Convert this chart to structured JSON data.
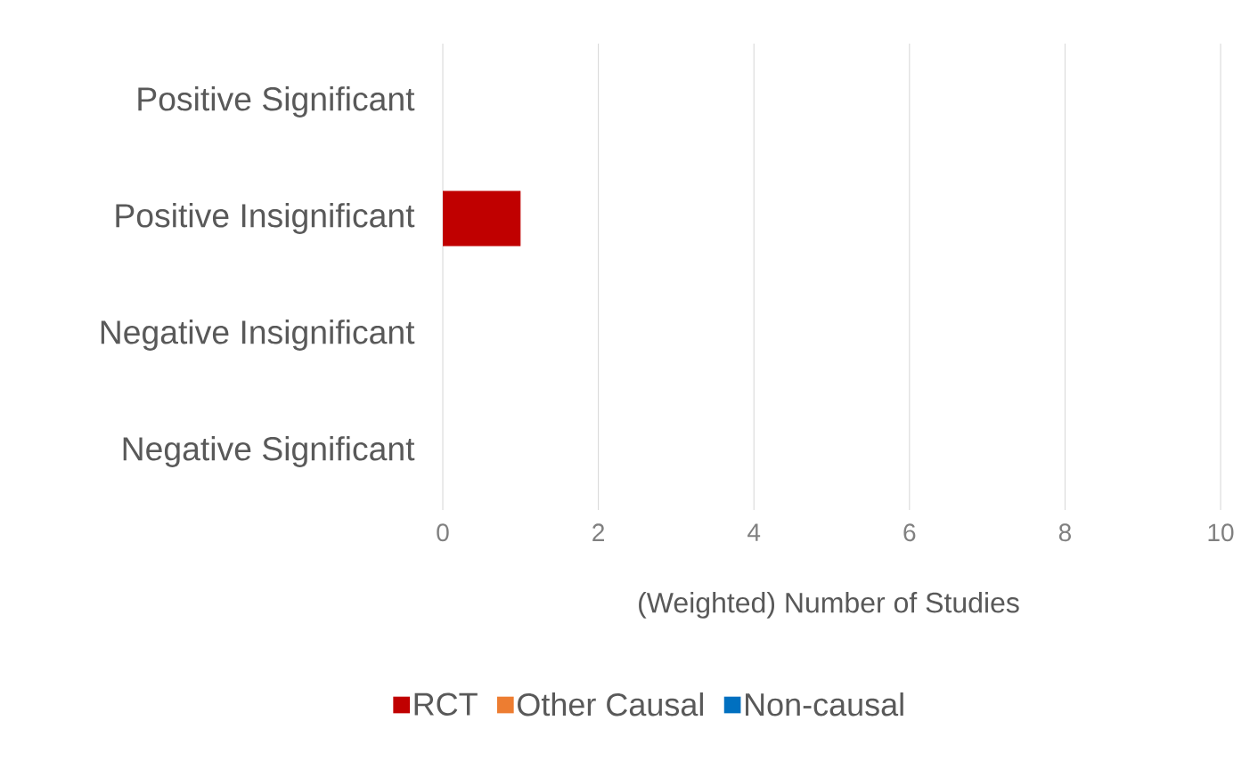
{
  "chart_data": {
    "type": "bar",
    "orientation": "horizontal",
    "stacked": true,
    "categories": [
      "Positive Significant",
      "Positive Insignificant",
      "Negative Insignificant",
      "Negative Significant"
    ],
    "series": [
      {
        "name": "RCT",
        "color": "#c00000",
        "values": [
          0,
          1,
          0,
          0
        ]
      },
      {
        "name": "Other Causal",
        "color": "#ed7d31",
        "values": [
          0,
          0,
          0,
          0
        ]
      },
      {
        "name": "Non-causal",
        "color": "#0070c0",
        "values": [
          0,
          0,
          0,
          0
        ]
      }
    ],
    "xlabel": "(Weighted) Number of Studies",
    "xlim": [
      0,
      10
    ],
    "xticks": [
      0,
      2,
      4,
      6,
      8,
      10
    ],
    "grid": "x",
    "legend": "bottom"
  }
}
